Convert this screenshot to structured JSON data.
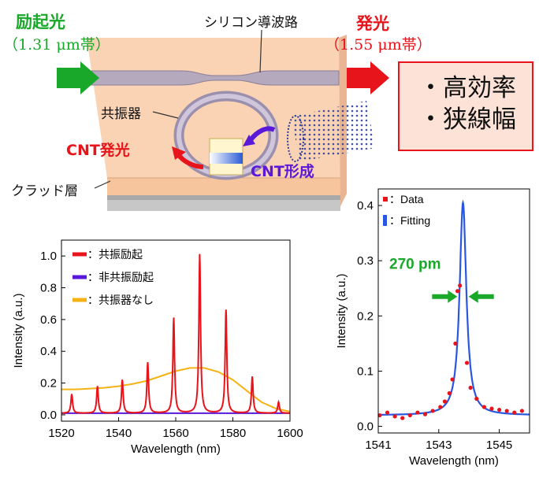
{
  "diagram": {
    "excitation_label": "励起光",
    "excitation_band": "（1.31 μm帯）",
    "emission_label": "発光",
    "emission_band": "（1.55 μm帯）",
    "waveguide_label": "シリコン導波路",
    "resonator_label": "共振器",
    "cnt_emission_label": "CNT発光",
    "cnt_formation_label": "CNT形成",
    "clad_label": "クラッド層",
    "result_items": [
      "・高効率",
      "・狭線幅"
    ],
    "colors": {
      "green": "#1aa82a",
      "red": "#e8141b",
      "purple": "#5a18d8",
      "slab": "#f9c9a4"
    }
  },
  "chart_data": [
    {
      "type": "line",
      "xlabel": "Wavelength (nm)",
      "ylabel": "Intensity (a.u.)",
      "xlim": [
        1520,
        1600
      ],
      "ylim": [
        -0.04,
        1.1
      ],
      "xticks": [
        1520,
        1540,
        1560,
        1580,
        1600
      ],
      "yticks": [
        0.0,
        0.2,
        0.4,
        0.6,
        0.8,
        1.0
      ],
      "legend_position": "top-left",
      "peaks": {
        "x": [
          1523.6,
          1532.6,
          1541.3,
          1550.2,
          1559.3,
          1568.4,
          1577.6,
          1586.8,
          1596.0
        ],
        "y": [
          0.12,
          0.17,
          0.21,
          0.32,
          0.6,
          1.0,
          0.65,
          0.23,
          0.07
        ]
      },
      "series": [
        {
          "name": "：共振励起",
          "color": "#e8141b"
        },
        {
          "name": "：非共振励起",
          "color": "#5a18d8",
          "level": 0.01
        },
        {
          "name": "：共振器なし",
          "color": "#f5b215",
          "x": [
            1520,
            1525,
            1530,
            1535,
            1540,
            1545,
            1550,
            1555,
            1560,
            1565,
            1570,
            1575,
            1580,
            1585,
            1590,
            1595,
            1600
          ],
          "y": [
            0.16,
            0.16,
            0.165,
            0.17,
            0.18,
            0.195,
            0.215,
            0.245,
            0.275,
            0.295,
            0.295,
            0.27,
            0.22,
            0.15,
            0.08,
            0.04,
            0.02
          ]
        }
      ]
    },
    {
      "type": "scatter",
      "xlabel": "Wavelength (nm)",
      "ylabel": "Intensity (a.u.)",
      "xlim": [
        1541,
        1546
      ],
      "ylim": [
        -0.012,
        0.43
      ],
      "xticks": [
        1541,
        1543,
        1545
      ],
      "yticks": [
        0.0,
        0.1,
        0.2,
        0.3,
        0.4
      ],
      "legend_position": "top-left",
      "annotation": "270 pm",
      "fit": {
        "center": 1543.8,
        "fwhm": 0.27,
        "peak": 0.405,
        "baseline": 0.02
      },
      "series": [
        {
          "name": "：Data",
          "color": "#e8141b",
          "x": [
            1541.05,
            1541.3,
            1541.55,
            1541.8,
            1542.05,
            1542.3,
            1542.55,
            1542.8,
            1543.05,
            1543.2,
            1543.35,
            1543.45,
            1543.55,
            1543.62,
            1543.7,
            1543.93,
            1544.05,
            1544.25,
            1544.5,
            1544.75,
            1545.0,
            1545.25,
            1545.5,
            1545.75
          ],
          "y": [
            0.02,
            0.025,
            0.018,
            0.015,
            0.02,
            0.025,
            0.022,
            0.028,
            0.035,
            0.045,
            0.06,
            0.085,
            0.15,
            0.245,
            0.255,
            0.115,
            0.07,
            0.05,
            0.035,
            0.032,
            0.03,
            0.028,
            0.025,
            0.028
          ]
        },
        {
          "name": "：Fitting",
          "color": "#2a56e0"
        }
      ]
    }
  ]
}
